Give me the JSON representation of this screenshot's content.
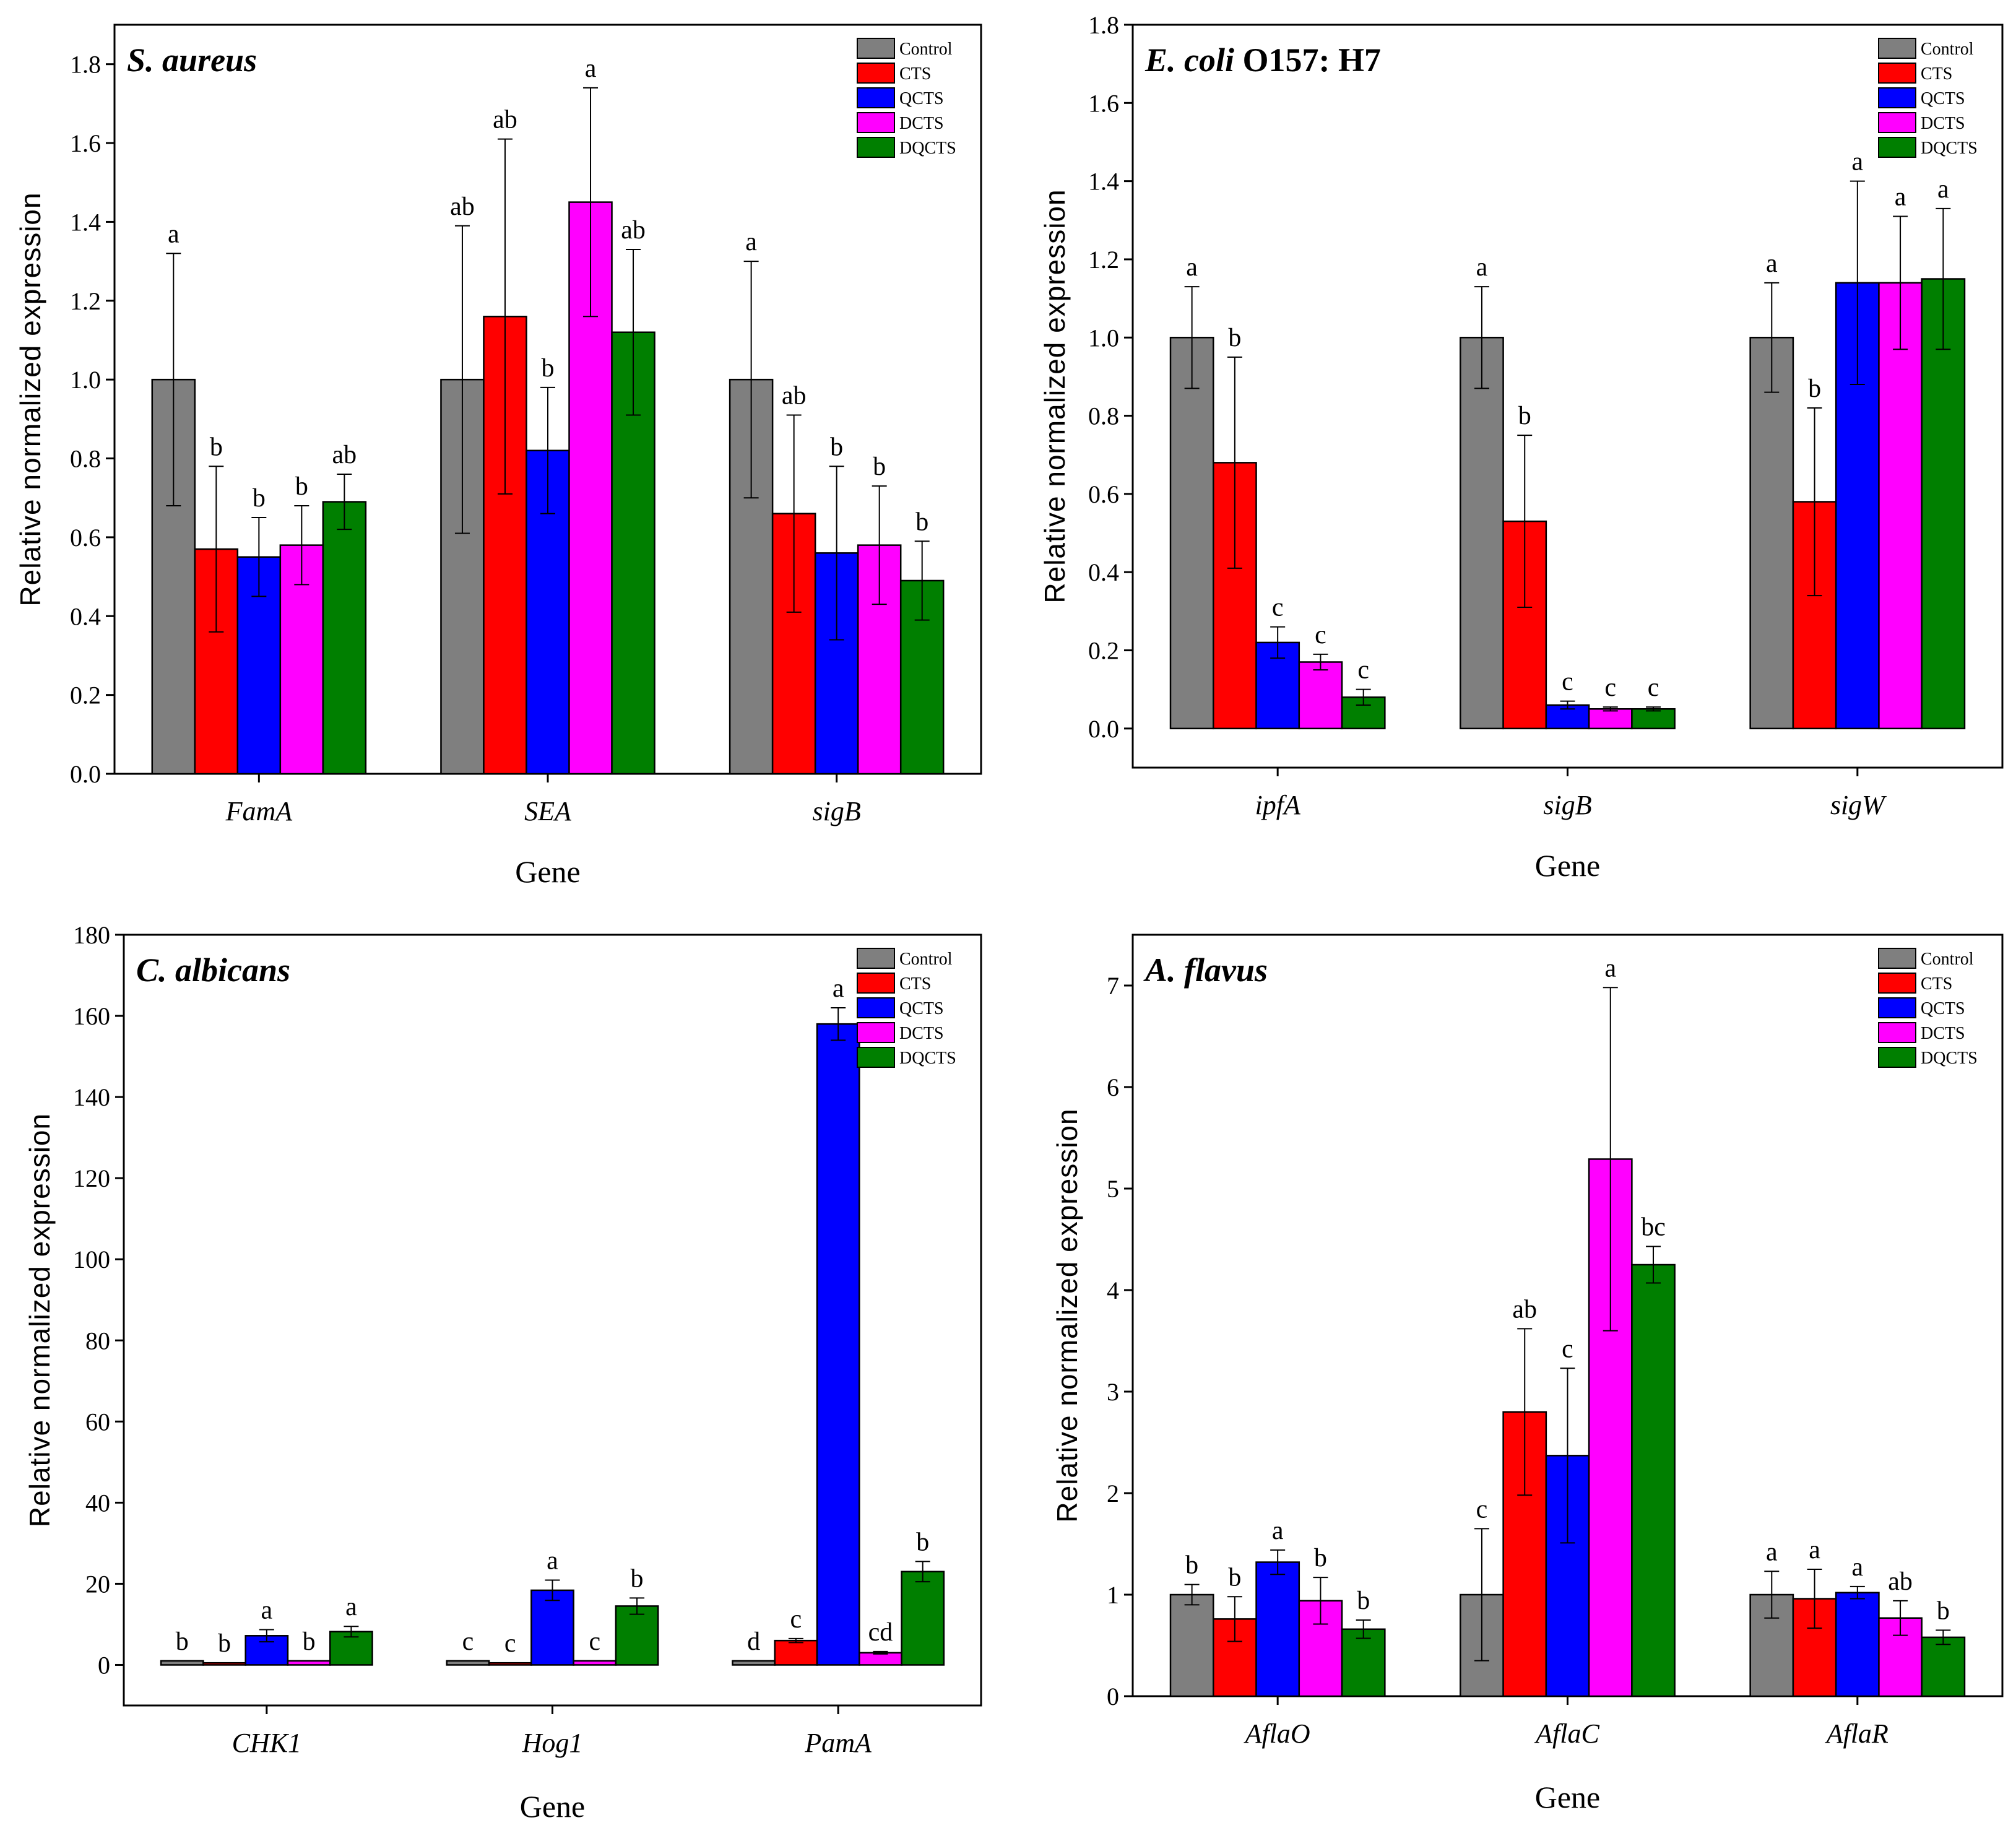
{
  "colors": {
    "Control": "#7f7f7f",
    "CTS": "#ff0000",
    "QCTS": "#0000ff",
    "DCTS": "#ff00ff",
    "DQCTS": "#007f00"
  },
  "chart_data": [
    {
      "type": "bar",
      "title_italic": "S. aureus",
      "title_rest": "",
      "xlabel": "Gene",
      "ylabel": "Relative normalized expression",
      "ylim": [
        0,
        1.9
      ],
      "yticks": [
        "0.0",
        "0.2",
        "0.4",
        "0.6",
        "0.8",
        "1.0",
        "1.2",
        "1.4",
        "1.6",
        "1.8"
      ],
      "ytick_values": [
        0,
        0.2,
        0.4,
        0.6,
        0.8,
        1.0,
        1.2,
        1.4,
        1.6,
        1.8
      ],
      "legend_position": "top-right",
      "categories": [
        "FamA",
        "SEA",
        "sigB"
      ],
      "series": [
        {
          "name": "Control",
          "values": [
            1.0,
            1.0,
            1.0
          ],
          "errors": [
            0.32,
            0.39,
            0.3
          ],
          "labels": [
            "a",
            "ab",
            "a"
          ]
        },
        {
          "name": "CTS",
          "values": [
            0.57,
            1.16,
            0.66
          ],
          "errors": [
            0.21,
            0.45,
            0.25
          ],
          "labels": [
            "b",
            "ab",
            "ab"
          ]
        },
        {
          "name": "QCTS",
          "values": [
            0.55,
            0.82,
            0.56
          ],
          "errors": [
            0.1,
            0.16,
            0.22
          ],
          "labels": [
            "b",
            "b",
            "b"
          ]
        },
        {
          "name": "DCTS",
          "values": [
            0.58,
            1.45,
            0.58
          ],
          "errors": [
            0.1,
            0.29,
            0.15
          ],
          "labels": [
            "b",
            "a",
            "b"
          ]
        },
        {
          "name": "DQCTS",
          "values": [
            0.69,
            1.12,
            0.49
          ],
          "errors": [
            0.07,
            0.21,
            0.1
          ],
          "labels": [
            "ab",
            "ab",
            "b"
          ]
        }
      ]
    },
    {
      "type": "bar",
      "title_italic": "E. coli",
      "title_rest": " O157: H7",
      "xlabel": "Gene",
      "ylabel": "Relative normalized expression",
      "ylim": [
        -0.1,
        1.8
      ],
      "yticks": [
        "0.0",
        "0.2",
        "0.4",
        "0.6",
        "0.8",
        "1.0",
        "1.2",
        "1.4",
        "1.6",
        "1.8"
      ],
      "ytick_values": [
        0,
        0.2,
        0.4,
        0.6,
        0.8,
        1.0,
        1.2,
        1.4,
        1.6,
        1.8
      ],
      "legend_position": "top-right",
      "categories": [
        "ipfA",
        "sigB",
        "sigW"
      ],
      "series": [
        {
          "name": "Control",
          "values": [
            1.0,
            1.0,
            1.0
          ],
          "errors": [
            0.13,
            0.13,
            0.14
          ],
          "labels": [
            "a",
            "a",
            "a"
          ]
        },
        {
          "name": "CTS",
          "values": [
            0.68,
            0.53,
            0.58
          ],
          "errors": [
            0.27,
            0.22,
            0.24
          ],
          "labels": [
            "b",
            "b",
            "b"
          ]
        },
        {
          "name": "QCTS",
          "values": [
            0.22,
            0.06,
            1.14
          ],
          "errors": [
            0.04,
            0.01,
            0.26
          ],
          "labels": [
            "c",
            "c",
            "a"
          ]
        },
        {
          "name": "DCTS",
          "values": [
            0.17,
            0.05,
            1.14
          ],
          "errors": [
            0.02,
            0.005,
            0.17
          ],
          "labels": [
            "c",
            "c",
            "a"
          ]
        },
        {
          "name": "DQCTS",
          "values": [
            0.08,
            0.05,
            1.15
          ],
          "errors": [
            0.02,
            0.005,
            0.18
          ],
          "labels": [
            "c",
            "c",
            "a"
          ]
        }
      ]
    },
    {
      "type": "bar",
      "title_italic": "C. albicans",
      "title_rest": "",
      "xlabel": "Gene",
      "ylabel": "Relative normalized expression",
      "ylim": [
        -10,
        180
      ],
      "yticks": [
        "0",
        "20",
        "40",
        "60",
        "80",
        "100",
        "120",
        "140",
        "160",
        "180"
      ],
      "ytick_values": [
        0,
        20,
        40,
        60,
        80,
        100,
        120,
        140,
        160,
        180
      ],
      "legend_position": "top-right",
      "categories": [
        "CHK1",
        "Hog1",
        "PamA"
      ],
      "series": [
        {
          "name": "Control",
          "values": [
            1.0,
            1.0,
            1.0
          ],
          "errors": [
            0,
            0,
            0
          ],
          "labels": [
            "b",
            "c",
            "d"
          ]
        },
        {
          "name": "CTS",
          "values": [
            0.5,
            0.5,
            6.0
          ],
          "errors": [
            0,
            0,
            0.5
          ],
          "labels": [
            "b",
            "c",
            "c"
          ]
        },
        {
          "name": "QCTS",
          "values": [
            7.2,
            18.4,
            158.0
          ],
          "errors": [
            1.5,
            2.5,
            4.0
          ],
          "labels": [
            "a",
            "a",
            "a"
          ]
        },
        {
          "name": "DCTS",
          "values": [
            1.0,
            1.0,
            3.0
          ],
          "errors": [
            0,
            0,
            0.3
          ],
          "labels": [
            "b",
            "c",
            "cd"
          ]
        },
        {
          "name": "DQCTS",
          "values": [
            8.2,
            14.5,
            23.0
          ],
          "errors": [
            1.3,
            2.0,
            2.5
          ],
          "labels": [
            "a",
            "b",
            "b"
          ]
        }
      ]
    },
    {
      "type": "bar",
      "title_italic": "A. flavus",
      "title_rest": "",
      "xlabel": "Gene",
      "ylabel": "Relative normalized expression",
      "ylim": [
        0,
        7.5
      ],
      "yticks": [
        "0",
        "1",
        "2",
        "3",
        "4",
        "5",
        "6",
        "7"
      ],
      "ytick_values": [
        0,
        1,
        2,
        3,
        4,
        5,
        6,
        7
      ],
      "legend_position": "top-right",
      "categories": [
        "AflaO",
        "AflaC",
        "AflaR"
      ],
      "series": [
        {
          "name": "Control",
          "values": [
            1.0,
            1.0,
            1.0
          ],
          "errors": [
            0.1,
            0.65,
            0.23
          ],
          "labels": [
            "b",
            "c",
            "a"
          ]
        },
        {
          "name": "CTS",
          "values": [
            0.76,
            2.8,
            0.96
          ],
          "errors": [
            0.22,
            0.82,
            0.29
          ],
          "labels": [
            "b",
            "ab",
            "a"
          ]
        },
        {
          "name": "QCTS",
          "values": [
            1.32,
            2.37,
            1.02
          ],
          "errors": [
            0.12,
            0.86,
            0.06
          ],
          "labels": [
            "a",
            "c",
            "a"
          ]
        },
        {
          "name": "DCTS",
          "values": [
            0.94,
            5.29,
            0.77
          ],
          "errors": [
            0.23,
            1.69,
            0.17
          ],
          "labels": [
            "b",
            "a",
            "ab"
          ]
        },
        {
          "name": "DQCTS",
          "values": [
            0.66,
            4.25,
            0.58
          ],
          "errors": [
            0.09,
            0.18,
            0.07
          ],
          "labels": [
            "b",
            "bc",
            "b"
          ]
        }
      ]
    }
  ]
}
